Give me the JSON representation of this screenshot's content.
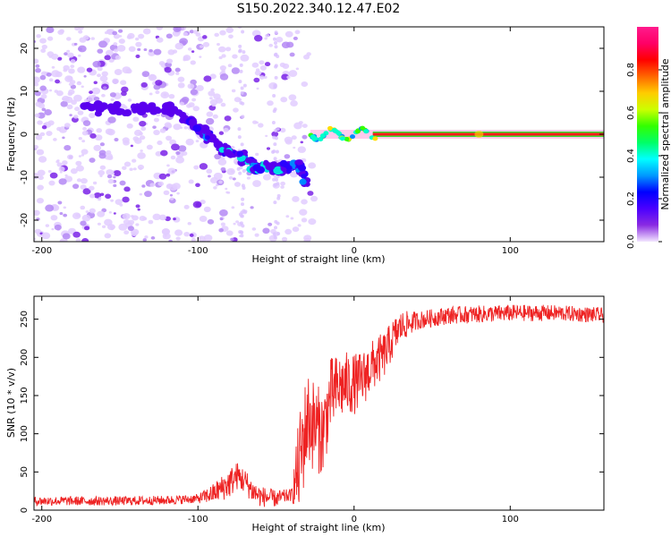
{
  "figure": {
    "title": "S150.2022.340.12.47.E02"
  },
  "chart_data": [
    {
      "type": "heatmap",
      "xlabel": "Height of straight line (km)",
      "ylabel": "Frequency (Hz)",
      "xlim": [
        -205,
        160
      ],
      "ylim": [
        -25,
        25
      ],
      "xticks": [
        -200,
        -100,
        0,
        100
      ],
      "yticks": [
        -20,
        -10,
        0,
        10,
        20
      ],
      "colorbar": {
        "label": "Normalized spectral amplitude",
        "range": [
          0,
          1
        ],
        "ticks": [
          "0.0",
          "0.2",
          "0.4",
          "0.6",
          "0.8"
        ],
        "colors": [
          "#f2e6ff",
          "#8a2be2",
          "#4b00ff",
          "#0000ff",
          "#0099ff",
          "#00ffff",
          "#00ff66",
          "#33ff00",
          "#ccff00",
          "#ffcc00",
          "#ff6600",
          "#ff0000",
          "#ff0066",
          "#ff1a8c"
        ]
      },
      "features": {
        "noise_region_km": [
          -205,
          -25
        ],
        "dispersion_branch": [
          {
            "x": -175,
            "y": 6
          },
          {
            "x": -150,
            "y": 6
          },
          {
            "x": -120,
            "y": 6
          },
          {
            "x": -105,
            "y": 3
          },
          {
            "x": -95,
            "y": 0
          },
          {
            "x": -85,
            "y": -3
          },
          {
            "x": -75,
            "y": -5
          },
          {
            "x": -65,
            "y": -7
          },
          {
            "x": -55,
            "y": -8
          },
          {
            "x": -45,
            "y": -8
          },
          {
            "x": -35,
            "y": -7
          },
          {
            "x": -30,
            "y": -12
          }
        ],
        "steady_tone": {
          "x_start": -28,
          "x_end": 160,
          "frequency": 0
        }
      }
    },
    {
      "type": "line",
      "xlabel": "Height of straight line (km)",
      "ylabel": "SNR (10 * v/v)",
      "xlim": [
        -205,
        160
      ],
      "ylim": [
        0,
        280
      ],
      "xticks": [
        -200,
        -100,
        0,
        100
      ],
      "yticks": [
        0,
        50,
        100,
        150,
        200,
        250
      ],
      "color": "#ee2222",
      "profile": [
        {
          "x": -205,
          "y": 12
        },
        {
          "x": -180,
          "y": 12
        },
        {
          "x": -150,
          "y": 12
        },
        {
          "x": -120,
          "y": 13
        },
        {
          "x": -100,
          "y": 15
        },
        {
          "x": -90,
          "y": 22
        },
        {
          "x": -80,
          "y": 35
        },
        {
          "x": -75,
          "y": 45
        },
        {
          "x": -70,
          "y": 38
        },
        {
          "x": -65,
          "y": 25
        },
        {
          "x": -60,
          "y": 18
        },
        {
          "x": -50,
          "y": 15
        },
        {
          "x": -40,
          "y": 20
        },
        {
          "x": -35,
          "y": 60
        },
        {
          "x": -30,
          "y": 120
        },
        {
          "x": -25,
          "y": 110
        },
        {
          "x": -20,
          "y": 100
        },
        {
          "x": -15,
          "y": 150
        },
        {
          "x": -10,
          "y": 160
        },
        {
          "x": -5,
          "y": 165
        },
        {
          "x": 0,
          "y": 165
        },
        {
          "x": 5,
          "y": 170
        },
        {
          "x": 10,
          "y": 185
        },
        {
          "x": 15,
          "y": 195
        },
        {
          "x": 20,
          "y": 205
        },
        {
          "x": 25,
          "y": 225
        },
        {
          "x": 30,
          "y": 240
        },
        {
          "x": 40,
          "y": 248
        },
        {
          "x": 60,
          "y": 255
        },
        {
          "x": 100,
          "y": 258
        },
        {
          "x": 130,
          "y": 258
        },
        {
          "x": 160,
          "y": 255
        }
      ],
      "noise_amplitude": [
        {
          "x": -205,
          "a": 6
        },
        {
          "x": -100,
          "a": 6
        },
        {
          "x": -80,
          "a": 20
        },
        {
          "x": -40,
          "a": 8
        },
        {
          "x": -35,
          "a": 70
        },
        {
          "x": -10,
          "a": 45
        },
        {
          "x": 20,
          "a": 30
        },
        {
          "x": 40,
          "a": 12
        },
        {
          "x": 160,
          "a": 10
        }
      ]
    }
  ]
}
